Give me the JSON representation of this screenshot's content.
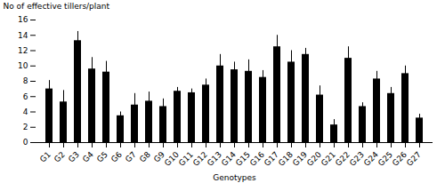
{
  "chart_data": {
    "type": "bar",
    "categories": [
      "G1",
      "G2",
      "G3",
      "G4",
      "G5",
      "G6",
      "G7",
      "G8",
      "G9",
      "G10",
      "G11",
      "G12",
      "G13",
      "G14",
      "G15",
      "G16",
      "G17",
      "G18",
      "G19",
      "G20",
      "G21",
      "G22",
      "G23",
      "G24",
      "G25",
      "G26",
      "G27"
    ],
    "values": [
      7.0,
      5.3,
      13.3,
      9.6,
      9.2,
      3.5,
      4.9,
      5.4,
      4.7,
      6.7,
      6.5,
      7.5,
      10.0,
      9.5,
      9.3,
      8.5,
      12.5,
      10.5,
      11.5,
      6.2,
      2.3,
      11.0,
      4.7,
      8.3,
      6.4,
      9.0,
      3.2
    ],
    "errors": [
      1.1,
      1.5,
      1.2,
      1.5,
      1.4,
      0.5,
      1.5,
      1.2,
      1.0,
      0.5,
      0.5,
      0.8,
      1.5,
      1.0,
      1.5,
      0.9,
      1.5,
      1.5,
      0.8,
      1.2,
      0.7,
      1.5,
      0.5,
      1.0,
      0.8,
      1.0,
      0.5
    ],
    "ylabel": "No of effective tillers/plant",
    "xlabel": "Genotypes",
    "ylim": [
      0,
      16
    ],
    "yticks": [
      0,
      2,
      4,
      6,
      8,
      10,
      12,
      14,
      16
    ]
  }
}
